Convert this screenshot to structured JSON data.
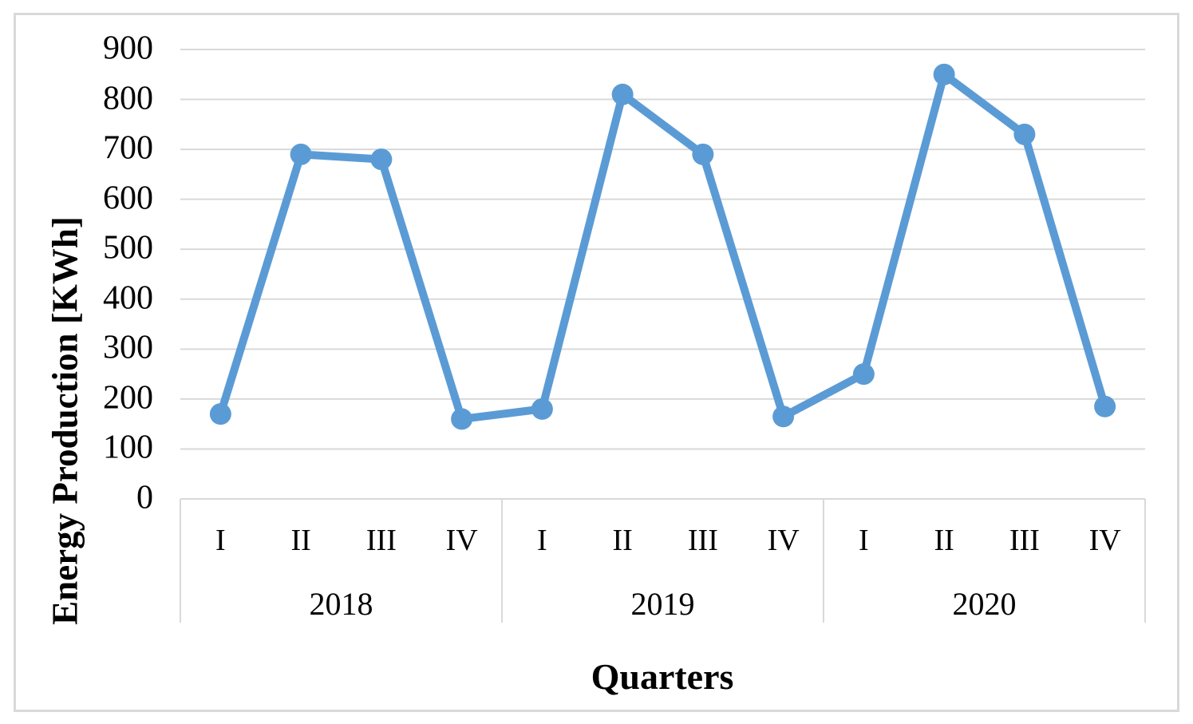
{
  "chart_data": {
    "type": "line",
    "title": "",
    "ylabel": "Energy Production [KWh]",
    "xlabel": "Quarters",
    "ylim": [
      0,
      900
    ],
    "y_tick_step": 100,
    "y_tick_labels": [
      "0",
      "100",
      "200",
      "300",
      "400",
      "500",
      "600",
      "700",
      "800",
      "900"
    ],
    "grid": "horizontal gridlines only",
    "legend_position": "none",
    "categories": [
      "I",
      "II",
      "III",
      "IV",
      "I",
      "II",
      "III",
      "IV",
      "I",
      "II",
      "III",
      "IV"
    ],
    "year_groups": [
      {
        "label": "2018",
        "span": 4
      },
      {
        "label": "2019",
        "span": 4
      },
      {
        "label": "2020",
        "span": 4
      }
    ],
    "series": [
      {
        "name": "Energy Production",
        "values": [
          170,
          690,
          680,
          160,
          180,
          810,
          690,
          165,
          250,
          850,
          730,
          185
        ]
      }
    ],
    "colors": {
      "line": "#5B9BD5",
      "marker": "#5B9BD5",
      "gridline": "#D9D9D9",
      "axis_table_border": "#D9D9D9",
      "figure_border": "#D9D9D9",
      "text": "#000000"
    }
  }
}
